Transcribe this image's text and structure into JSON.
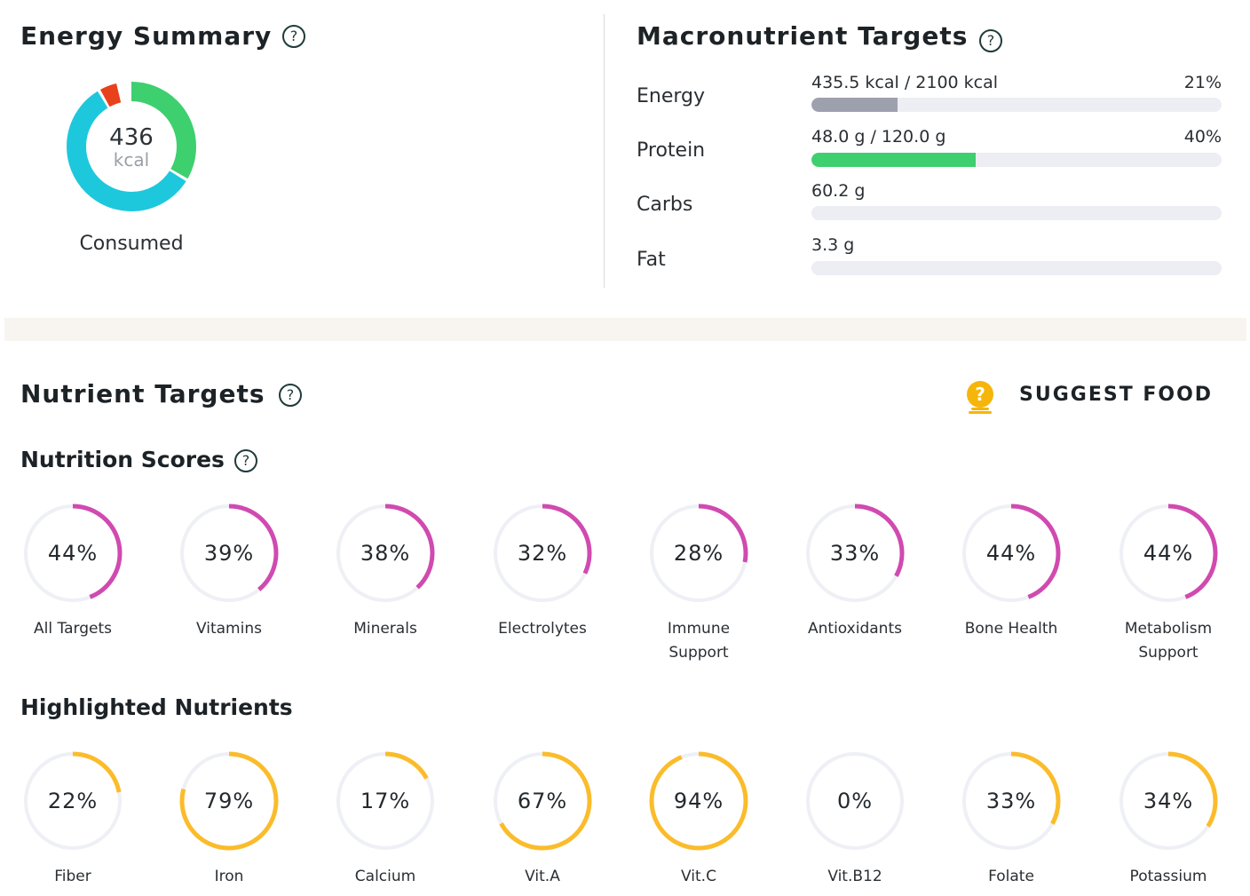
{
  "energy_summary": {
    "title": "Energy Summary",
    "help_icon": "?",
    "donut_value": "436",
    "donut_unit": "kcal",
    "donut_caption": "Consumed",
    "segments": [
      {
        "share": 0.34,
        "color": "#3ecf6f"
      },
      {
        "share": 0.58,
        "color": "#1ec8dc"
      },
      {
        "share": 0.05,
        "color": "#e8411b"
      }
    ]
  },
  "macronutrients": {
    "title": "Macronutrient Targets",
    "help_icon": "?",
    "rows": [
      {
        "label": "Energy",
        "amount": "435.5 kcal / 2100 kcal",
        "percent": "21%",
        "fraction": 0.21,
        "color": "#9da1ad"
      },
      {
        "label": "Protein",
        "amount": "48.0 g / 120.0 g",
        "percent": "40%",
        "fraction": 0.4,
        "color": "#3ecf6f"
      },
      {
        "label": "Carbs",
        "amount": "60.2 g",
        "percent": "",
        "fraction": 0,
        "color": "#eceef4"
      },
      {
        "label": "Fat",
        "amount": "3.3 g",
        "percent": "",
        "fraction": 0,
        "color": "#eceef4"
      }
    ]
  },
  "nutrient_targets": {
    "title": "Nutrient Targets",
    "help_icon": "?",
    "suggest_label": "SUGGEST FOOD",
    "suggest_icon_glyph": "?",
    "accent_color": "#f5b50a"
  },
  "nutrition_scores": {
    "title": "Nutrition Scores",
    "help_icon": "?",
    "color": "#d04ab0",
    "items": [
      {
        "value": "44%",
        "fraction": 0.44,
        "label": "All Targets"
      },
      {
        "value": "39%",
        "fraction": 0.39,
        "label": "Vitamins"
      },
      {
        "value": "38%",
        "fraction": 0.38,
        "label": "Minerals"
      },
      {
        "value": "32%",
        "fraction": 0.32,
        "label": "Electrolytes"
      },
      {
        "value": "28%",
        "fraction": 0.28,
        "label": "Immune\nSupport"
      },
      {
        "value": "33%",
        "fraction": 0.33,
        "label": "Antioxidants"
      },
      {
        "value": "44%",
        "fraction": 0.44,
        "label": "Bone Health"
      },
      {
        "value": "44%",
        "fraction": 0.44,
        "label": "Metabolism\nSupport"
      }
    ]
  },
  "highlighted_nutrients": {
    "title": "Highlighted Nutrients",
    "color": "#fbbc2b",
    "items": [
      {
        "value": "22%",
        "fraction": 0.22,
        "label": "Fiber"
      },
      {
        "value": "79%",
        "fraction": 0.79,
        "label": "Iron"
      },
      {
        "value": "17%",
        "fraction": 0.17,
        "label": "Calcium"
      },
      {
        "value": "67%",
        "fraction": 0.67,
        "label": "Vit.A"
      },
      {
        "value": "94%",
        "fraction": 0.94,
        "label": "Vit.C"
      },
      {
        "value": "0%",
        "fraction": 0.0,
        "label": "Vit.B12"
      },
      {
        "value": "33%",
        "fraction": 0.33,
        "label": "Folate"
      },
      {
        "value": "34%",
        "fraction": 0.34,
        "label": "Potassium"
      }
    ]
  }
}
